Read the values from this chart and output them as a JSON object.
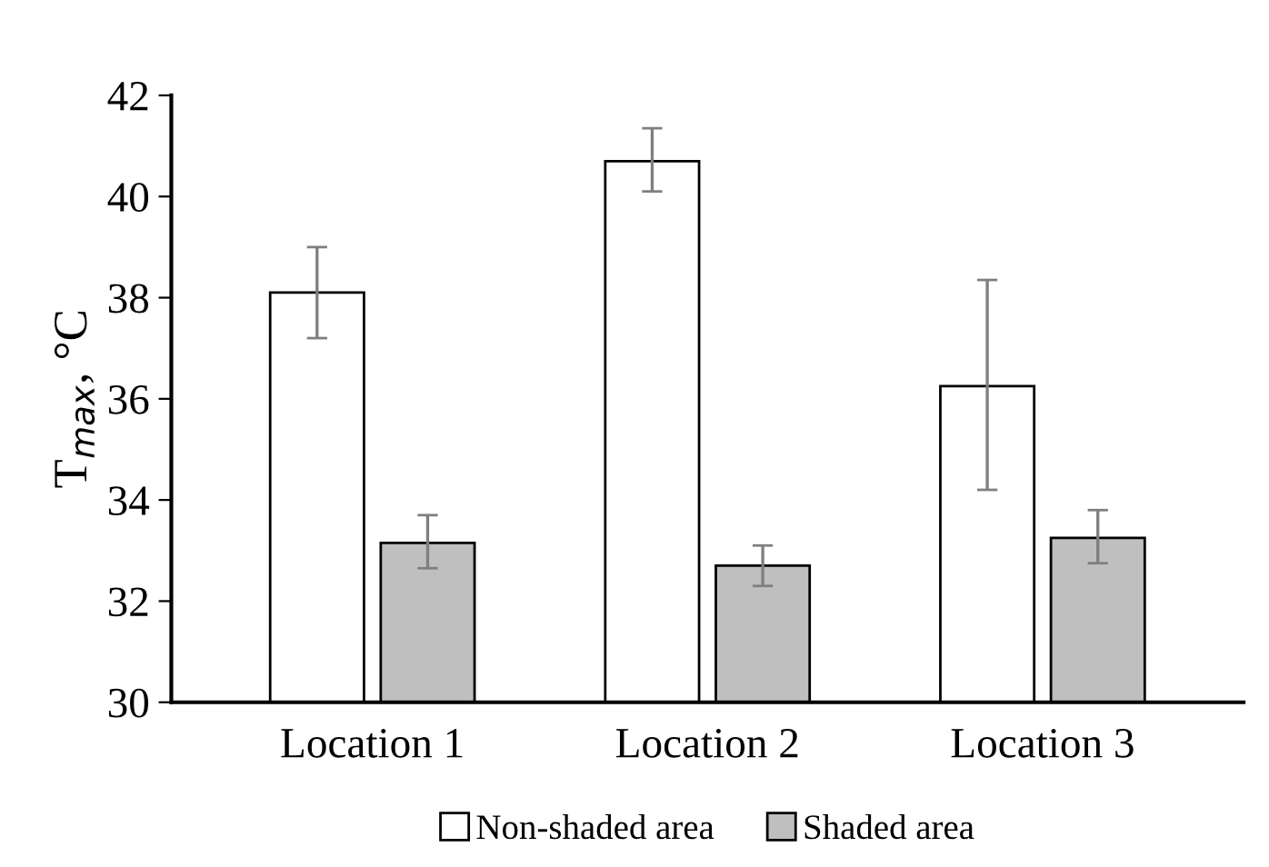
{
  "chart_data": {
    "type": "bar",
    "ylabel": "T$_{max}$, °C",
    "categories": [
      "Location 1",
      "Location 2",
      "Location 3"
    ],
    "series": [
      {
        "name": "Non-shaded area",
        "color": "#ffffff",
        "values": [
          38.1,
          40.7,
          36.25
        ],
        "errors": [
          [
            37.2,
            39.0
          ],
          [
            40.1,
            41.35
          ],
          [
            34.2,
            38.35
          ]
        ]
      },
      {
        "name": "Shaded area",
        "color": "#bfbfbf",
        "values": [
          33.15,
          32.7,
          33.25
        ],
        "errors": [
          [
            32.65,
            33.7
          ],
          [
            32.3,
            33.1
          ],
          [
            32.75,
            33.8
          ]
        ]
      }
    ],
    "ylim": [
      30,
      42
    ],
    "yticks": [
      30,
      32,
      34,
      36,
      38,
      40,
      42
    ],
    "grid": false,
    "legend": "bottom"
  }
}
